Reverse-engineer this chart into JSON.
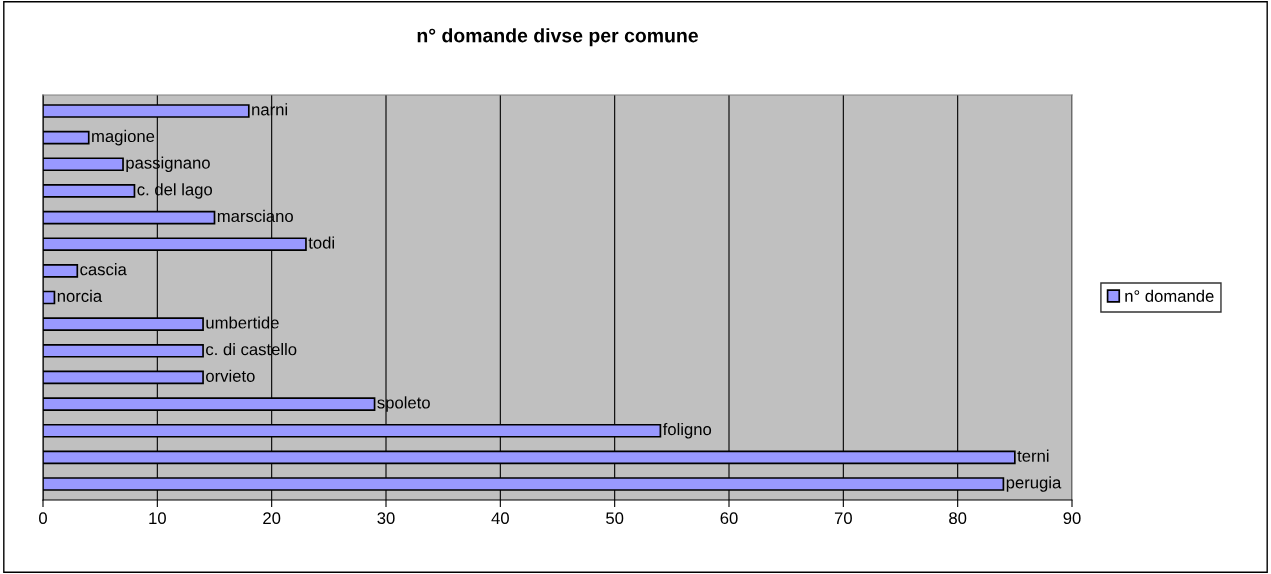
{
  "chart_data": {
    "type": "bar",
    "orientation": "horizontal",
    "title": "n° domande divse per comune",
    "categories": [
      "narni",
      "magione",
      "passignano",
      "c. del lago",
      "marsciano",
      "todi",
      "cascia",
      "norcia",
      "umbertide",
      "c. di castello",
      "orvieto",
      "spoleto",
      "foligno",
      "terni",
      "perugia"
    ],
    "series": [
      {
        "name": "n° domande",
        "color": "#9999ff",
        "values": [
          18,
          4,
          7,
          8,
          15,
          23,
          3,
          1,
          14,
          14,
          14,
          29,
          54,
          85,
          84
        ]
      }
    ],
    "xlim": [
      0,
      90
    ],
    "xticks": [
      0,
      10,
      20,
      30,
      40,
      50,
      60,
      70,
      80,
      90
    ],
    "grid": "x",
    "legend": "right",
    "tick_labels": "x"
  }
}
